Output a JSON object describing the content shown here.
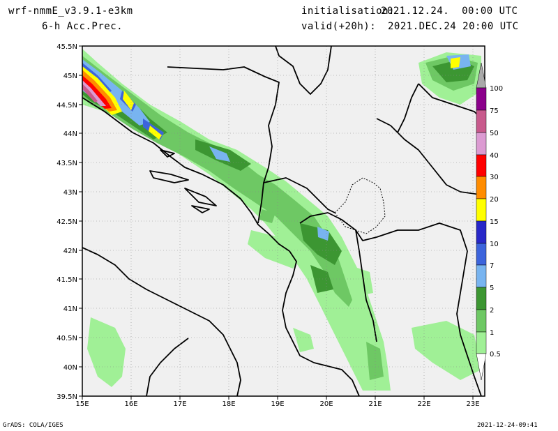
{
  "header": {
    "model": "wrf-nmmE_v3.9.1-e3km",
    "field": "6-h Acc.Prec.",
    "init_label": "initialisation:",
    "init_value": "2021.12.24.  00:00 UTC",
    "valid_label": "valid(+20h):",
    "valid_value": "2021.DEC.24 20:00 UTC"
  },
  "map": {
    "lat_labels": [
      "45.5N",
      "45N",
      "44.5N",
      "44N",
      "43.5N",
      "43N",
      "42.5N",
      "42N",
      "41.5N",
      "41N",
      "40.5N",
      "40N",
      "39.5N"
    ],
    "lon_labels": [
      "15E",
      "16E",
      "17E",
      "18E",
      "19E",
      "20E",
      "21E",
      "22E",
      "23E"
    ],
    "ocean_color": "#f0f0f0",
    "border_color": "#000000"
  },
  "colorbar": {
    "labels": [
      "100",
      "75",
      "50",
      "40",
      "30",
      "20",
      "15",
      "10",
      "7",
      "5",
      "2",
      "1",
      "0.5"
    ],
    "colors": [
      "#8b008b",
      "#c85a8c",
      "#dc9bd2",
      "#ff0000",
      "#ff8c00",
      "#ffff00",
      "#2828c8",
      "#3c64dc",
      "#78b4f0",
      "#3c9632",
      "#6ec864",
      "#a0f096",
      "#ffffff"
    ]
  },
  "footer": {
    "left": "GrADS: COLA/IGES",
    "right": "2021-12-24-09:41"
  }
}
